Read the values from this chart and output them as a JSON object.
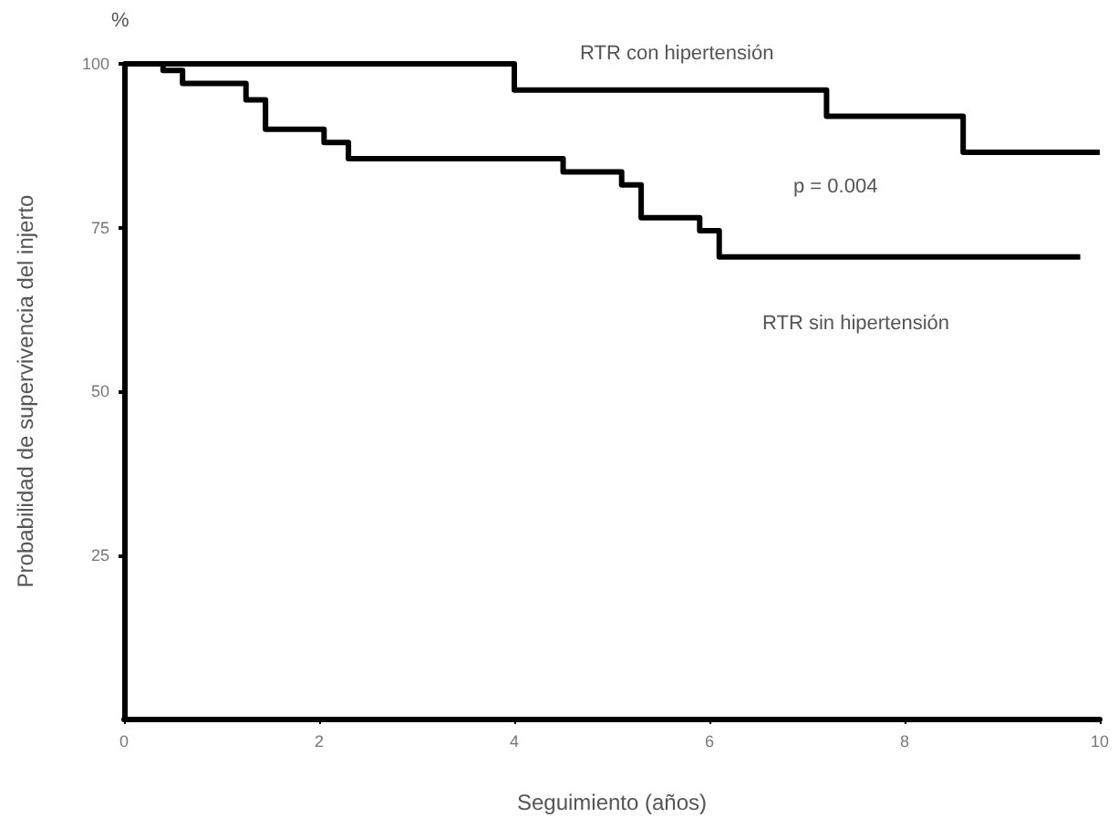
{
  "chart_data": {
    "type": "step",
    "xlabel": "Seguimiento (años)",
    "ylabel": "Probabilidad de supervivencia del injerto",
    "annotations": [
      "%",
      "p = 0.004"
    ],
    "series": [
      {
        "name": "RTR con hipertensión",
        "color": "#000000",
        "x": [
          0,
          4.0,
          7.2,
          8.6,
          10.0
        ],
        "values": [
          100,
          96,
          92,
          86.5,
          86.5
        ]
      },
      {
        "name": "RTR sin hipertensión",
        "color": "#000000",
        "x": [
          0,
          0.4,
          0.6,
          1.25,
          1.45,
          2.05,
          2.3,
          4.5,
          5.1,
          5.3,
          5.9,
          6.1,
          9.8
        ],
        "values": [
          100,
          99,
          97,
          94.5,
          90,
          88,
          85.5,
          83.5,
          81.5,
          76.5,
          74.5,
          70.5,
          70.5
        ]
      }
    ],
    "xlim": [
      0,
      10
    ],
    "xticks": [
      0,
      2,
      4,
      6,
      8,
      10
    ],
    "ylim": [
      0,
      100
    ],
    "yticks": [
      25,
      50,
      75,
      100
    ],
    "grid": false,
    "legend": false,
    "marker": "none",
    "line_style": "solid"
  }
}
